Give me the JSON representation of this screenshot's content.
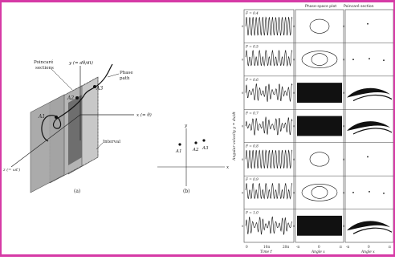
{
  "panel_a": {
    "y_axis_label": "y (= dθ/dt)",
    "phase_path_label_1": "Phase",
    "phase_path_label_2": "path",
    "poincare_label_1": "Poincaré",
    "poincare_label_2": "sections",
    "x_axis_label": "x (= θ)",
    "interval_label": "Interval",
    "z_axis_label": "z (= ωt')",
    "points": [
      "A1",
      "A2",
      "A3"
    ],
    "caption": "(a)"
  },
  "panel_b": {
    "y_label": "y",
    "x_label": "x",
    "points": [
      "A1",
      "A2",
      "A3"
    ],
    "caption": "(b)"
  },
  "grid": {
    "col_headers": [
      "",
      "Phase-space plot",
      "Poincaré section"
    ],
    "rows": [
      {
        "label": "F = 0.4",
        "type": "periodic",
        "section": "single"
      },
      {
        "label": "F = 0.5",
        "type": "period2",
        "section": "few"
      },
      {
        "label": "F = 0.6",
        "type": "chaotic",
        "section": "strange"
      },
      {
        "label": "F = 0.7",
        "type": "chaotic",
        "section": "strange"
      },
      {
        "label": "F = 0.8",
        "type": "periodic",
        "section": "single"
      },
      {
        "label": "F = 0.9",
        "type": "period2",
        "section": "few"
      },
      {
        "label": "F = 1.0",
        "type": "chaotic",
        "section": "strange"
      }
    ],
    "time_ticks": [
      "0",
      "10π",
      "20π"
    ],
    "time_axis_label": "Time t'",
    "angle_ticks": [
      "-π",
      "0",
      "π"
    ],
    "angle_axis_label": "Angle x",
    "poincare_ticks": [
      "-π",
      "0",
      "π"
    ],
    "poincare_axis_label": "Angle x",
    "y_axis_label": "Angular velocity y = dx/dt"
  }
}
